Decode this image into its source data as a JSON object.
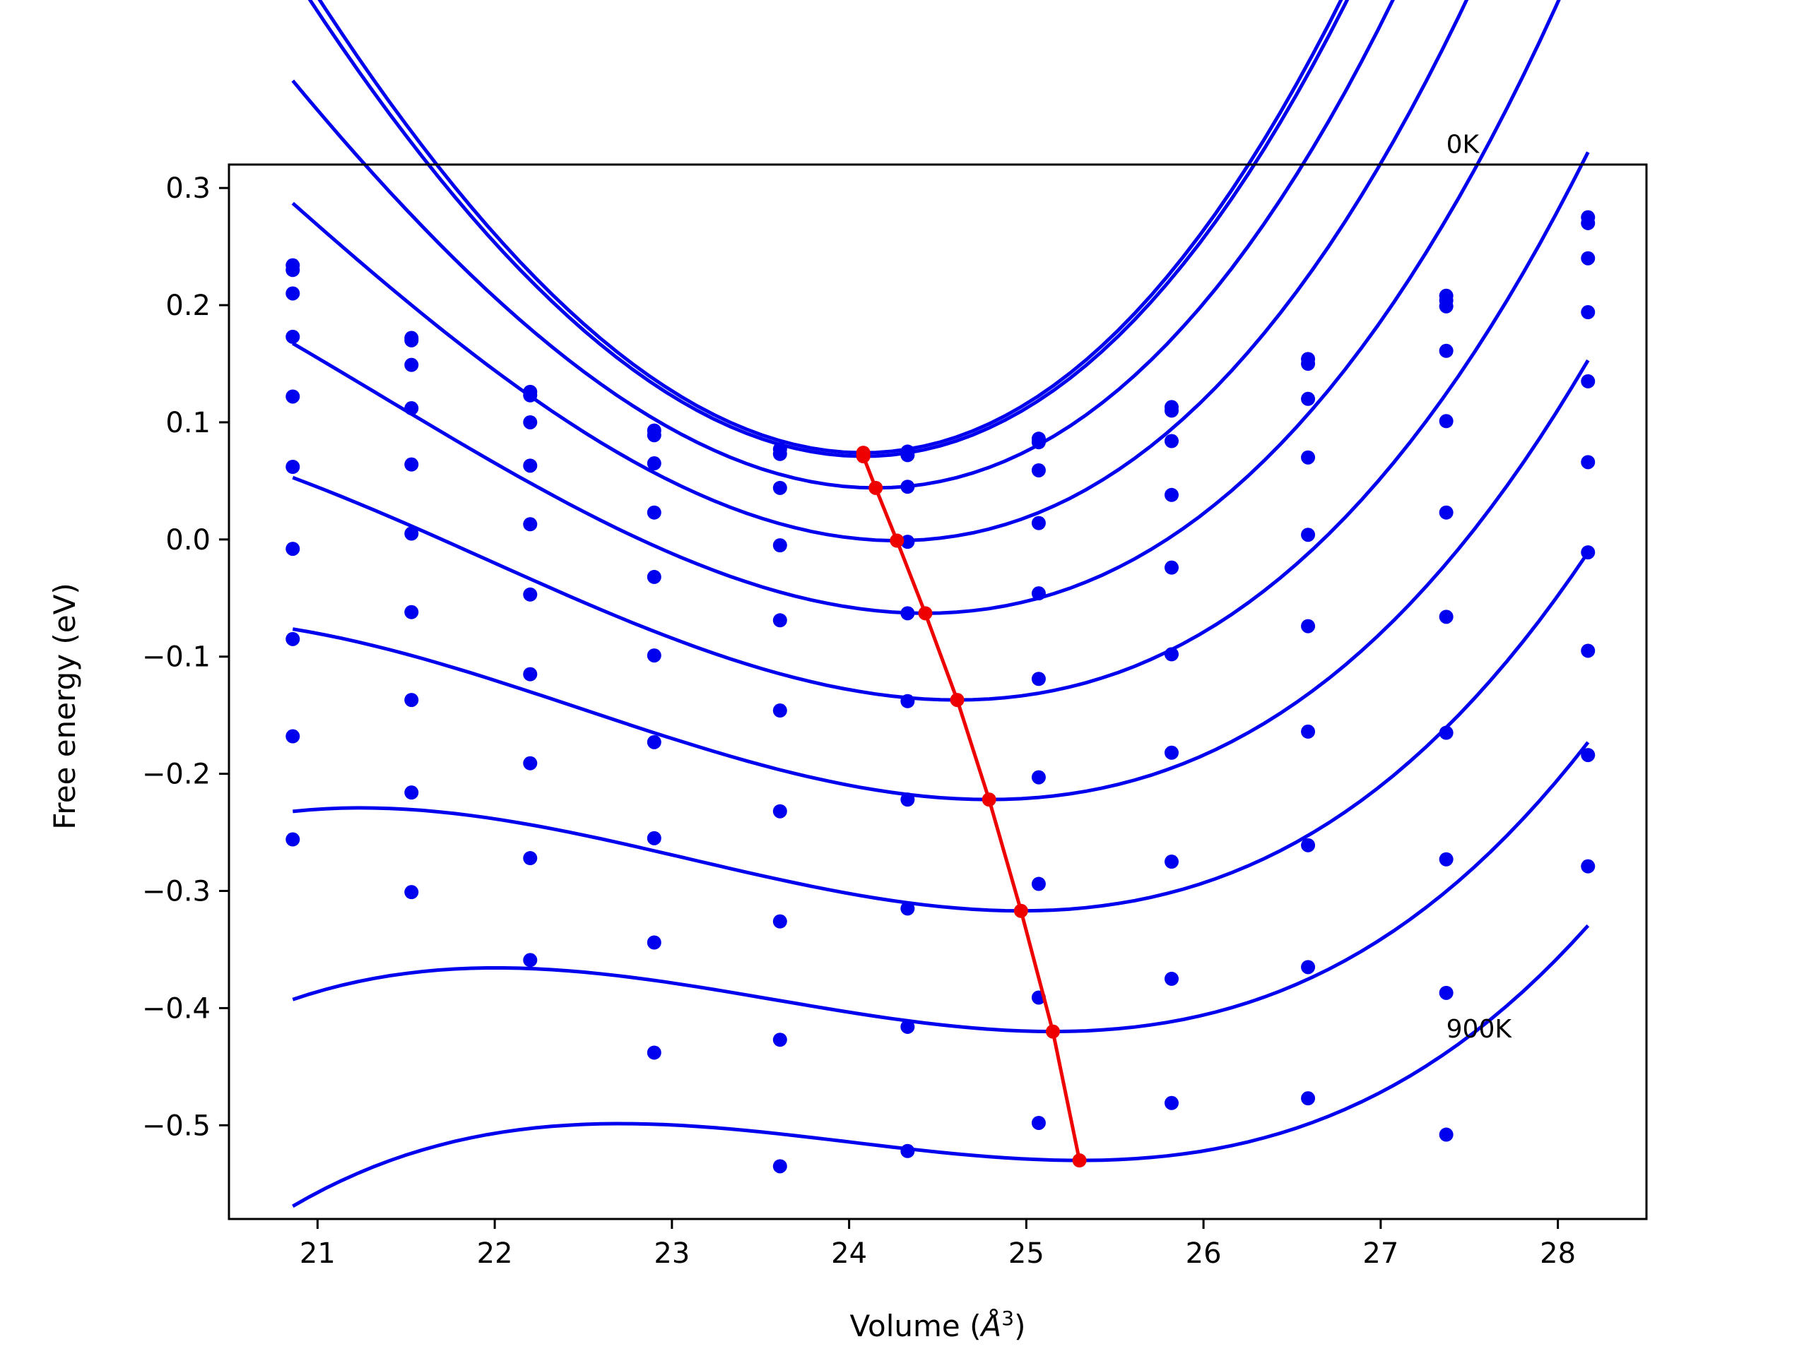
{
  "chart_data": {
    "type": "scatter",
    "xlabel": "Volume (",
    "xlabel_unit": "Å",
    "xlabel_exp": "3",
    "xlabel_close": ")",
    "ylabel": "Free energy (eV)",
    "xlim": [
      20.5,
      28.5
    ],
    "ylim": [
      -0.58,
      0.32
    ],
    "xticks": [
      21,
      22,
      23,
      24,
      25,
      26,
      27,
      28
    ],
    "yticks": [
      0.3,
      0.2,
      0.1,
      0.0,
      -0.1,
      -0.2,
      -0.3,
      -0.4,
      -0.5
    ],
    "ytick_labels": [
      "0.3",
      "0.2",
      "0.1",
      "0.0",
      "−0.1",
      "−0.2",
      "−0.3",
      "−0.4",
      "−0.5"
    ],
    "grid": false,
    "annotations": [
      {
        "text": "0K",
        "x": 27.37,
        "y": 0.33
      },
      {
        "text": "900K",
        "x": 27.37,
        "y": -0.425
      }
    ],
    "colors": {
      "data": "#0000ee",
      "minima": "#ee0000",
      "axes": "#000000"
    },
    "x_points": [
      20.86,
      21.53,
      22.2,
      22.9,
      23.61,
      24.33,
      25.07,
      25.82,
      26.59,
      27.37,
      28.17
    ],
    "curve_x_range": [
      20.86,
      28.17
    ],
    "series": [
      {
        "values": [
          0.234,
          0.172,
          0.126,
          0.093,
          0.077,
          0.075,
          0.086,
          0.113,
          0.154,
          0.208,
          0.275
        ],
        "fit": {
          "vmin": 24.08,
          "emin": 0.074,
          "c1": 0.0475,
          "c2": 0.0021
        }
      },
      {
        "values": [
          0.23,
          0.17,
          0.123,
          0.089,
          0.073,
          0.072,
          0.083,
          0.11,
          0.15,
          0.204,
          0.27
        ],
        "fit": {
          "vmin": 24.08,
          "emin": 0.071,
          "c1": 0.0465,
          "c2": 0.0021
        }
      },
      {
        "values": [
          0.21,
          0.149,
          0.1,
          0.065,
          0.044,
          0.045,
          0.059,
          0.084,
          0.12,
          0.199,
          0.24
        ],
        "fit": {
          "vmin": 24.15,
          "emin": 0.044,
          "c1": 0.041,
          "c2": 0.0027
        }
      },
      {
        "values": [
          0.173,
          0.112,
          0.063,
          0.023,
          -0.005,
          -0.002,
          0.014,
          0.038,
          0.07,
          0.161,
          0.194
        ],
        "fit": {
          "vmin": 24.27,
          "emin": -0.001,
          "c1": 0.035,
          "c2": 0.003
        }
      },
      {
        "values": [
          0.122,
          0.064,
          0.013,
          -0.032,
          -0.069,
          -0.063,
          -0.046,
          -0.024,
          0.004,
          0.101,
          0.135
        ],
        "fit": {
          "vmin": 24.43,
          "emin": -0.063,
          "c1": 0.0295,
          "c2": 0.0032
        }
      },
      {
        "values": [
          0.062,
          0.005,
          -0.047,
          -0.099,
          -0.146,
          -0.138,
          -0.119,
          -0.098,
          -0.074,
          0.023,
          0.066
        ],
        "fit": {
          "vmin": 24.61,
          "emin": -0.137,
          "c1": 0.0255,
          "c2": 0.0032
        }
      },
      {
        "values": [
          -0.008,
          -0.062,
          -0.115,
          -0.173,
          -0.232,
          -0.222,
          -0.203,
          -0.182,
          -0.164,
          -0.066,
          -0.011
        ],
        "fit": {
          "vmin": 24.79,
          "emin": -0.222,
          "c1": 0.022,
          "c2": 0.0032
        }
      },
      {
        "values": [
          -0.085,
          -0.137,
          -0.191,
          -0.255,
          -0.326,
          -0.315,
          -0.294,
          -0.275,
          -0.261,
          -0.165,
          -0.095
        ],
        "fit": {
          "vmin": 24.97,
          "emin": -0.317,
          "c1": 0.019,
          "c2": 0.0034
        }
      },
      {
        "values": [
          -0.168,
          -0.216,
          -0.272,
          -0.344,
          -0.427,
          -0.416,
          -0.391,
          -0.375,
          -0.365,
          -0.273,
          -0.184
        ],
        "fit": {
          "vmin": 25.15,
          "emin": -0.42,
          "c1": 0.0165,
          "c2": 0.0035
        }
      },
      {
        "values": [
          -0.256,
          -0.301,
          -0.359,
          -0.438,
          -0.535,
          -0.522,
          -0.498,
          -0.481,
          -0.477,
          -0.387,
          -0.279
        ],
        "fit": {
          "vmin": 25.3,
          "emin": -0.53,
          "c1": 0.014,
          "c2": 0.0036
        }
      },
      {
        "values": [
          null,
          null,
          null,
          null,
          null,
          null,
          null,
          null,
          null,
          -0.508,
          null
        ],
        "fit": null
      }
    ],
    "minima_line": {
      "x": [
        24.08,
        24.08,
        24.15,
        24.27,
        24.43,
        24.61,
        24.79,
        24.97,
        25.15,
        25.3
      ],
      "y": [
        0.074,
        0.071,
        0.044,
        -0.001,
        -0.063,
        -0.137,
        -0.222,
        -0.317,
        -0.42,
        -0.53
      ]
    }
  }
}
